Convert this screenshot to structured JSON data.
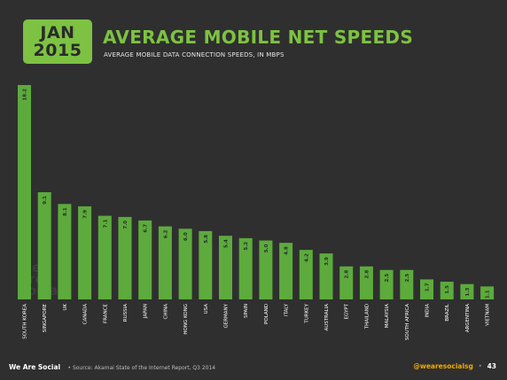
{
  "header": {
    "month": "JAN",
    "year": "2015",
    "title": "AVERAGE MOBILE NET SPEEDS",
    "subtitle": "AVERAGE MOBILE DATA CONNECTION SPEEDS, IN MBPS"
  },
  "watermark": {
    "line1": "we",
    "line2": "are",
    "line3": "social"
  },
  "footer": {
    "brand": "We Are Social",
    "source": "•  Source: Akamai State of the Internet Report, Q3 2014",
    "handle": "@wearesocialsg",
    "separator": "•",
    "page": "43"
  },
  "colors": {
    "accent": "#7dc242",
    "background": "#2f2f2f",
    "bar": "#5cab3c",
    "bar_label": "#2a2a2a"
  },
  "chart_data": {
    "type": "bar",
    "title": "AVERAGE MOBILE NET SPEEDS",
    "subtitle": "AVERAGE MOBILE DATA CONNECTION SPEEDS, IN MBPS",
    "categories": [
      "SOUTH KOREA",
      "SINGAPORE",
      "UK",
      "CANADA",
      "FRANCE",
      "RUSSIA",
      "JAPAN",
      "CHINA",
      "HONG KONG",
      "USA",
      "GERMANY",
      "SPAIN",
      "POLAND",
      "ITALY",
      "TURKEY",
      "AUSTRALIA",
      "EGYPT",
      "THAILAND",
      "MALAYSIA",
      "SOUTH AFRICA",
      "INDIA",
      "BRAZIL",
      "ARGENTINA",
      "VIETNAM"
    ],
    "values": [
      18.2,
      9.1,
      8.1,
      7.9,
      7.1,
      7.0,
      6.7,
      6.2,
      6.0,
      5.8,
      5.4,
      5.2,
      5.0,
      4.8,
      4.2,
      3.9,
      2.8,
      2.8,
      2.5,
      2.5,
      1.7,
      1.5,
      1.3,
      1.1
    ],
    "value_labels": [
      "18.2",
      "9.1",
      "8.1",
      "7.9",
      "7.1",
      "7.0",
      "6.7",
      "6.2",
      "6.0",
      "5.8",
      "5.4",
      "5.2",
      "5.0",
      "4.8",
      "4.2",
      "3.9",
      "2.8",
      "2.8",
      "2.5",
      "2.5",
      "1.7",
      "1.5",
      "1.3",
      "1.1"
    ],
    "ylim": [
      0,
      18.2
    ],
    "grid": false,
    "legend": "none"
  }
}
